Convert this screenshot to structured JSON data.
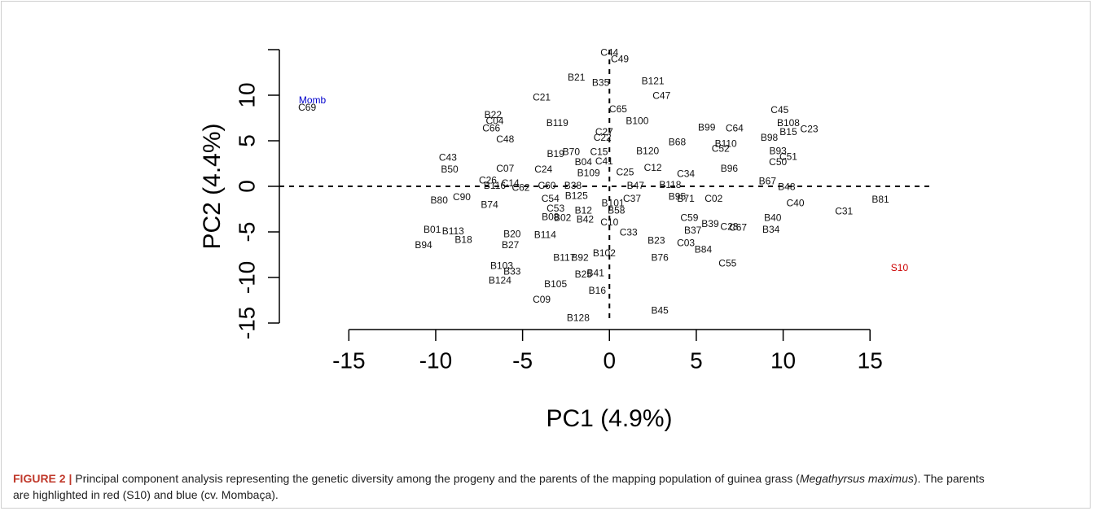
{
  "chart_data": {
    "type": "scatter",
    "xlabel": "PC1 (4.9%)",
    "ylabel": "PC2 (4.4%)",
    "xlim": [
      -19,
      18.6
    ],
    "ylim": [
      -15,
      15
    ],
    "xticks": [
      -15,
      -10,
      -5,
      0,
      5,
      10,
      15
    ],
    "yticks": [
      -15,
      -10,
      -5,
      0,
      5,
      10
    ],
    "reference_lines": {
      "x": 0,
      "y": 0
    },
    "series": [
      {
        "color": "#111111",
        "labels": [
          "C44",
          "C49",
          "B21",
          "B35",
          "B121",
          "C47",
          "C21",
          "C65",
          "B100",
          "B99",
          "C64",
          "C45",
          "B108",
          "C23",
          "B15",
          "B98",
          "B110",
          "C52",
          "B68",
          "B120",
          "B93",
          "C51",
          "C50",
          "B96",
          "C34",
          "C12",
          "C25",
          "B67",
          "B48",
          "B118",
          "B47",
          "C40",
          "B81",
          "C31",
          "B40",
          "B34",
          "C67",
          "C28",
          "B39",
          "C59",
          "B37",
          "C02",
          "B71",
          "B95",
          "C37",
          "B101",
          "B58",
          "C10",
          "C33",
          "B23",
          "C03",
          "B84",
          "B76",
          "C55",
          "B45",
          "B16",
          "B41",
          "B25",
          "B105",
          "C09",
          "B128",
          "B102",
          "B117",
          "B92",
          "B114",
          "B20",
          "B27",
          "B103",
          "B33",
          "B124",
          "B01",
          "B113",
          "B18",
          "B94",
          "B80",
          "C90",
          "B74",
          "B50",
          "C43",
          "C07",
          "C26",
          "B116",
          "C14",
          "C62",
          "C60",
          "B38",
          "C54",
          "B125",
          "C53",
          "B08",
          "B02",
          "B12",
          "B42",
          "B22",
          "C04",
          "C66",
          "C48",
          "B119",
          "C27",
          "C22",
          "B19",
          "B70",
          "B04",
          "C15",
          "C41",
          "C24",
          "B109",
          "C69"
        ],
        "x": [
          0,
          0.6,
          -1.9,
          -0.5,
          2.5,
          3.0,
          -3.9,
          0.5,
          1.6,
          5.6,
          7.2,
          9.8,
          10.3,
          11.5,
          10.3,
          9.2,
          6.7,
          6.4,
          3.9,
          2.2,
          9.7,
          10.3,
          9.7,
          6.9,
          4.4,
          2.5,
          0.9,
          9.1,
          10.2,
          3.5,
          1.5,
          10.7,
          15.6,
          13.5,
          9.4,
          9.3,
          7.4,
          6.9,
          5.8,
          4.6,
          4.8,
          6.0,
          4.4,
          3.9,
          1.3,
          0.2,
          0.4,
          0,
          1.1,
          2.7,
          4.4,
          5.4,
          2.9,
          6.8,
          2.9,
          -0.7,
          -0.8,
          -1.5,
          -3.1,
          -3.9,
          -1.8,
          -0.3,
          -2.6,
          -1.7,
          -3.7,
          -5.6,
          -5.7,
          -6.2,
          -5.6,
          -6.3,
          -10.2,
          -9.0,
          -8.4,
          -10.7,
          -9.8,
          -8.5,
          -6.9,
          -9.2,
          -9.3,
          -6.0,
          -7.0,
          -6.6,
          -5.7,
          -5.1,
          -3.6,
          -2.1,
          -3.4,
          -1.9,
          -3.1,
          -3.4,
          -2.7,
          -1.5,
          -1.4,
          -6.7,
          -6.6,
          -6.8,
          -6.0,
          -3.0,
          -0.3,
          -0.4,
          -3.1,
          -2.2,
          -1.5,
          -0.6,
          -0.3,
          -3.8,
          -1.2,
          -17.4
        ],
        "values": [
          14.6,
          13.9,
          11.9,
          11.3,
          11.5,
          9.9,
          9.7,
          8.4,
          7.1,
          6.4,
          6.3,
          8.3,
          6.9,
          6.2,
          5.9,
          5.3,
          4.6,
          4.1,
          4.8,
          3.8,
          3.8,
          3.2,
          2.6,
          1.9,
          1.3,
          2.0,
          1.5,
          0.5,
          -0.1,
          0.1,
          0,
          -1.9,
          -1.5,
          -2.8,
          -3.5,
          -4.8,
          -4.6,
          -4.5,
          -4.2,
          -3.5,
          -4.9,
          -1.4,
          -1.4,
          -1.2,
          -1.4,
          -1.9,
          -2.7,
          -4.0,
          -5.1,
          -6.0,
          -6.3,
          -7.0,
          -7.9,
          -8.5,
          -13.7,
          -11.5,
          -9.6,
          -9.7,
          -10.8,
          -12.5,
          -14.5,
          -7.4,
          -7.9,
          -7.9,
          -5.4,
          -5.3,
          -6.5,
          -8.8,
          -9.4,
          -10.4,
          -4.8,
          -5.0,
          -5.9,
          -6.5,
          -1.6,
          -1.25,
          -2.1,
          1.8,
          3.1,
          1.9,
          0.6,
          0,
          0.3,
          -0.2,
          0,
          0,
          -1.4,
          -1.1,
          -2.5,
          -3.4,
          -3.5,
          -2.7,
          -3.7,
          7.8,
          7.1,
          6.3,
          5.1,
          6.9,
          5.9,
          5.3,
          3.5,
          3.7,
          2.6,
          3.7,
          2.7,
          1.8,
          1.4,
          8.6
        ]
      },
      {
        "color": "#cc0000",
        "labels": [
          "S10"
        ],
        "x": [
          16.7
        ],
        "values": [
          -9.0
        ]
      },
      {
        "color": "#0000cc",
        "labels": [
          "Momb"
        ],
        "x": [
          -17.1
        ],
        "values": [
          9.4
        ]
      }
    ]
  },
  "caption": {
    "label": "FIGURE 2 |",
    "text": " Principal component analysis representing the genetic diversity among the progeny and the parents of the mapping population of guinea grass (",
    "italic": "Megathyrsus maximus",
    "end": "). The parents are highlighted in red (S10) and blue (cv. Mombaça)."
  }
}
